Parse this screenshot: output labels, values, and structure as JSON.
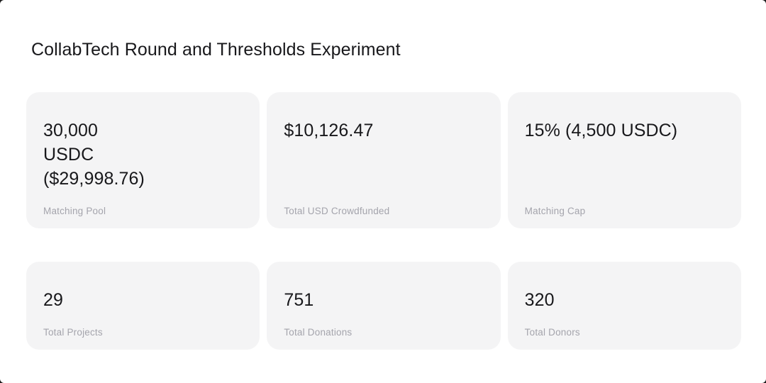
{
  "page_title": "CollabTech Round and Thresholds Experiment",
  "cards": [
    {
      "value": "30,000\nUSDC\n($29,998.76)",
      "label": "Matching Pool"
    },
    {
      "value": "$10,126.47",
      "label": "Total USD Crowdfunded"
    },
    {
      "value": "15% (4,500 USDC)",
      "label": "Matching Cap"
    },
    {
      "value": "29",
      "label": "Total Projects"
    },
    {
      "value": "751",
      "label": "Total Donations"
    },
    {
      "value": "320",
      "label": "Total Donors"
    }
  ],
  "colors": {
    "page_background": "#ffffff",
    "card_background": "#f4f4f5",
    "value_text": "#18181b",
    "label_text": "#a4a4ac"
  }
}
